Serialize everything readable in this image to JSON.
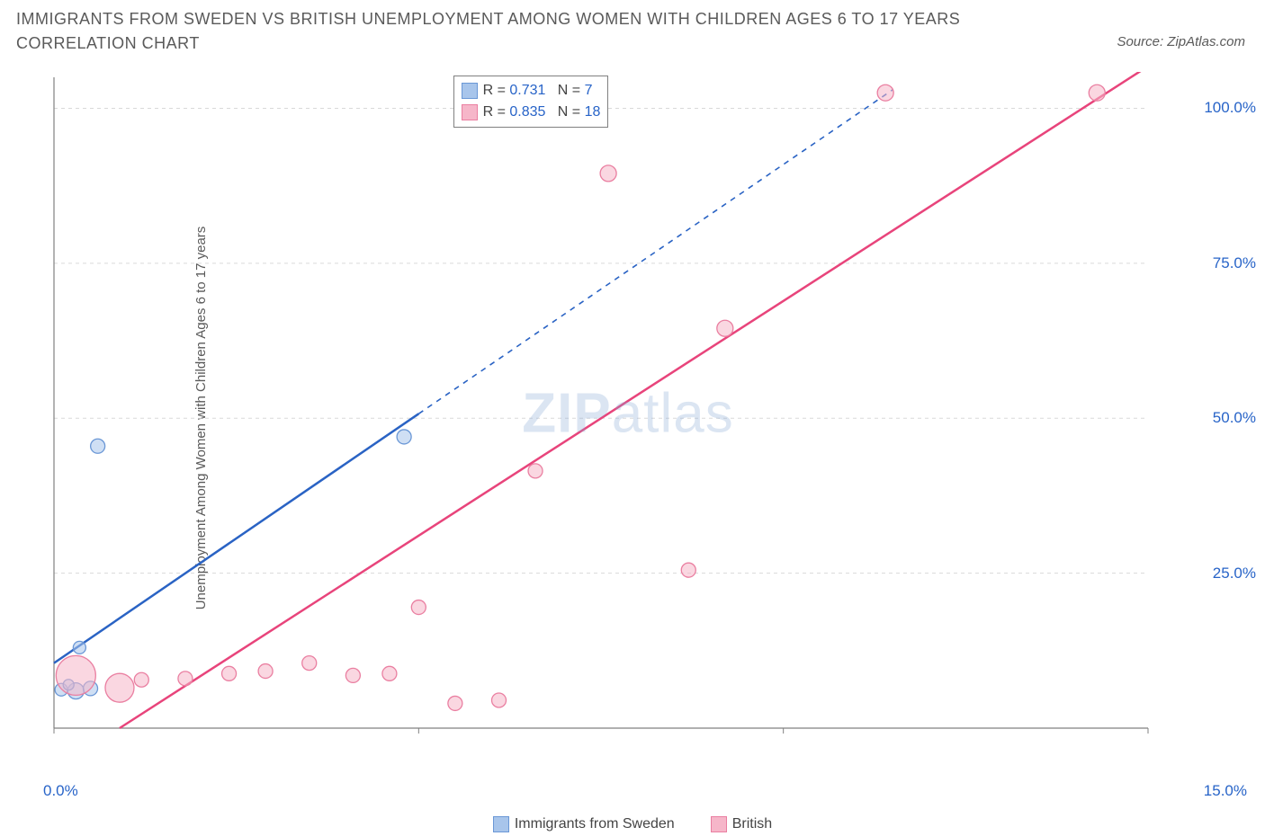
{
  "title": "IMMIGRANTS FROM SWEDEN VS BRITISH UNEMPLOYMENT AMONG WOMEN WITH CHILDREN AGES 6 TO 17 YEARS CORRELATION CHART",
  "source": "Source: ZipAtlas.com",
  "watermark_bold": "ZIP",
  "watermark_rest": "atlas",
  "ylabel": "Unemployment Among Women with Children Ages 6 to 17 years",
  "chart": {
    "type": "scatter",
    "xlim": [
      0,
      15
    ],
    "ylim": [
      0,
      105
    ],
    "x_ticks_shown": [
      0,
      15
    ],
    "x_tick_labels": [
      "0.0%",
      "15.0%"
    ],
    "y_ticks": [
      25,
      50,
      75,
      100
    ],
    "y_tick_labels": [
      "25.0%",
      "50.0%",
      "75.0%",
      "100.0%"
    ],
    "x_minor_ticks": [
      5,
      10
    ],
    "grid_color": "#d9d9d9",
    "axis_color": "#808080",
    "background": "#ffffff",
    "series": [
      {
        "name": "Immigrants from Sweden",
        "fill": "#a8c5eb",
        "fill_opacity": 0.55,
        "stroke": "#6a97d6",
        "line_color": "#2a63c4",
        "line_solid_to_x": 5.0,
        "line_start": {
          "x": 0.0,
          "y": 10.5
        },
        "line_end": {
          "x": 11.5,
          "y": 103
        },
        "points": [
          {
            "x": 0.1,
            "y": 6.2,
            "r": 7
          },
          {
            "x": 0.3,
            "y": 6.0,
            "r": 9
          },
          {
            "x": 0.5,
            "y": 6.4,
            "r": 8
          },
          {
            "x": 0.35,
            "y": 13.0,
            "r": 7
          },
          {
            "x": 0.6,
            "y": 45.5,
            "r": 8
          },
          {
            "x": 4.8,
            "y": 47.0,
            "r": 8
          },
          {
            "x": 0.2,
            "y": 7.0,
            "r": 6
          }
        ]
      },
      {
        "name": "British",
        "fill": "#f6b6c9",
        "fill_opacity": 0.55,
        "stroke": "#ea7fa1",
        "line_color": "#e8447b",
        "line_solid_to_x": 15.0,
        "line_start": {
          "x": 0.9,
          "y": 0
        },
        "line_end": {
          "x": 14.5,
          "y": 103
        },
        "points": [
          {
            "x": 0.3,
            "y": 8.5,
            "r": 22
          },
          {
            "x": 0.9,
            "y": 6.5,
            "r": 16
          },
          {
            "x": 1.2,
            "y": 7.8,
            "r": 8
          },
          {
            "x": 1.8,
            "y": 8.0,
            "r": 8
          },
          {
            "x": 2.4,
            "y": 8.8,
            "r": 8
          },
          {
            "x": 2.9,
            "y": 9.2,
            "r": 8
          },
          {
            "x": 3.5,
            "y": 10.5,
            "r": 8
          },
          {
            "x": 4.1,
            "y": 8.5,
            "r": 8
          },
          {
            "x": 4.6,
            "y": 8.8,
            "r": 8
          },
          {
            "x": 5.0,
            "y": 19.5,
            "r": 8
          },
          {
            "x": 5.5,
            "y": 4.0,
            "r": 8
          },
          {
            "x": 6.1,
            "y": 4.5,
            "r": 8
          },
          {
            "x": 6.6,
            "y": 41.5,
            "r": 8
          },
          {
            "x": 7.6,
            "y": 89.5,
            "r": 9
          },
          {
            "x": 8.7,
            "y": 25.5,
            "r": 8
          },
          {
            "x": 9.2,
            "y": 64.5,
            "r": 9
          },
          {
            "x": 11.4,
            "y": 102.5,
            "r": 9
          },
          {
            "x": 14.3,
            "y": 102.5,
            "r": 9
          }
        ]
      }
    ],
    "stats_box": {
      "left_pct": 35,
      "rows": [
        {
          "swatch_fill": "#a8c5eb",
          "swatch_stroke": "#6a97d6",
          "r_label": "R =",
          "r_val": "0.731",
          "n_label": "N =",
          "n_val": "7"
        },
        {
          "swatch_fill": "#f6b6c9",
          "swatch_stroke": "#ea7fa1",
          "r_label": "R =",
          "r_val": "0.835",
          "n_label": "N =",
          "n_val": "18"
        }
      ]
    },
    "legend_bottom": [
      {
        "swatch_fill": "#a8c5eb",
        "swatch_stroke": "#6a97d6",
        "label": "Immigrants from Sweden"
      },
      {
        "swatch_fill": "#f6b6c9",
        "swatch_stroke": "#ea7fa1",
        "label": "British"
      }
    ]
  }
}
